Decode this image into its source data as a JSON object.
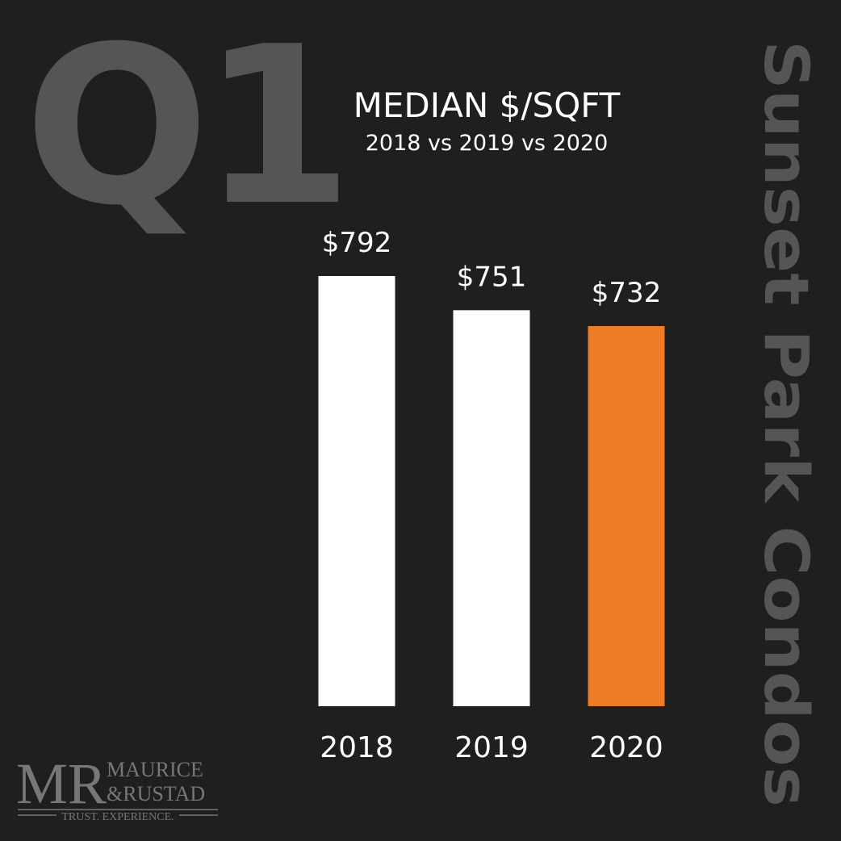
{
  "chart_data": {
    "type": "bar",
    "title": "MEDIAN $/SQFT",
    "subtitle": "2018 vs 2019 vs 2020",
    "quarter_label": "Q1",
    "side_title": "Sunset Park Condos",
    "categories": [
      "2018",
      "2019",
      "2020"
    ],
    "values": [
      792,
      751,
      732
    ],
    "value_labels": [
      "$792",
      "$751",
      "$732"
    ],
    "colors": [
      "#ffffff",
      "#ffffff",
      "#ee7b25"
    ],
    "ylim": [
      276,
      792
    ],
    "logo": {
      "mark": "MR",
      "line1": "MAURICE",
      "line2": "&RUSTAD",
      "tagline": "TRUST. EXPERIENCE."
    }
  }
}
